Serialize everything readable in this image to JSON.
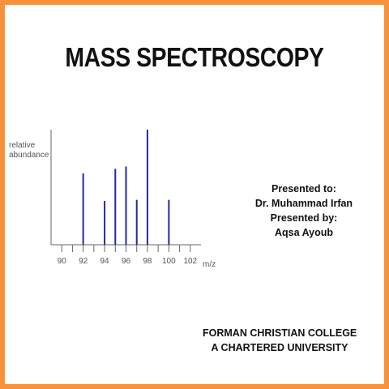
{
  "slide": {
    "title": "MASS SPECTROSCOPY",
    "border_color": "#f7923a",
    "presented_to_label": "Presented to:",
    "presented_to_name": "Dr. Muhammad Irfan",
    "presented_by_label": "Presented by:",
    "presented_by_name": "Aqsa Ayoub",
    "college_line1": "FORMAN CHRISTIAN COLLEGE",
    "college_line2": "A CHARTERED UNIVERSITY"
  },
  "chart_data": {
    "type": "bar",
    "title": "",
    "ylabel_line1": "relative",
    "ylabel_line2": "abundance",
    "xlabel": "m/z",
    "xlim": [
      89,
      103
    ],
    "ylim": [
      0,
      1
    ],
    "grid": false,
    "bar_color": "#1f2aa8",
    "x_ticks": [
      90,
      91,
      92,
      93,
      94,
      95,
      96,
      97,
      98,
      99,
      100,
      101,
      102
    ],
    "x_tick_labels": [
      "90",
      "92",
      "94",
      "96",
      "98",
      "100",
      "102"
    ],
    "x": [
      92,
      94,
      95,
      96,
      97,
      98,
      100
    ],
    "values": [
      0.62,
      0.38,
      0.66,
      0.68,
      0.39,
      1.0,
      0.39
    ]
  }
}
